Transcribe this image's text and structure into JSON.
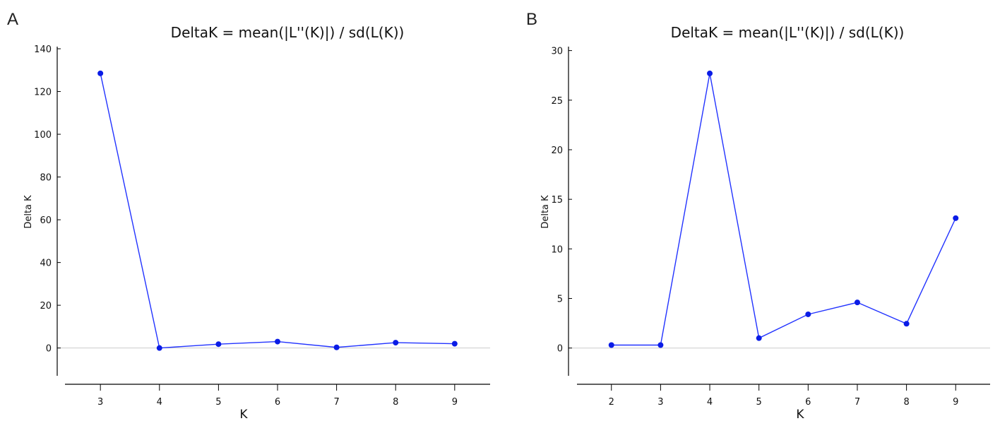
{
  "chart_data": [
    {
      "panel": "A",
      "type": "line",
      "title": "DeltaK = mean(|L''(K)|) / sd(L(K))",
      "xlabel": "K",
      "ylabel": "Delta K",
      "x": [
        3,
        4,
        5,
        6,
        7,
        8,
        9
      ],
      "x_ticks": [
        "3",
        "4",
        "5",
        "6",
        "7",
        "8",
        "9"
      ],
      "xlim": [
        2.4,
        9.6
      ],
      "y_ticks": [
        "0",
        "20",
        "40",
        "60",
        "80",
        "100",
        "120",
        "140"
      ],
      "ylim": [
        -13,
        141
      ],
      "series": [
        {
          "values": [
            128.5,
            0.0,
            1.8,
            3.0,
            0.3,
            2.5,
            2.0
          ]
        }
      ],
      "zero_line": true,
      "grid": false,
      "colors": {
        "line": "#2233ff",
        "marker": "#0a1ce6",
        "zero_line": "#cccccc",
        "axis": "#000000"
      }
    },
    {
      "panel": "B",
      "type": "line",
      "title": "DeltaK = mean(|L''(K)|) / sd(L(K))",
      "xlabel": "K",
      "ylabel": "Delta K",
      "x": [
        2,
        3,
        4,
        5,
        6,
        7,
        8,
        9
      ],
      "x_ticks": [
        "2",
        "3",
        "4",
        "5",
        "6",
        "7",
        "8",
        "9"
      ],
      "xlim": [
        1.3,
        9.7
      ],
      "y_ticks": [
        "0",
        "5",
        "10",
        "15",
        "20",
        "25",
        "30"
      ],
      "ylim": [
        -2.8,
        30.4
      ],
      "series": [
        {
          "values": [
            0.3,
            0.3,
            27.7,
            1.0,
            3.4,
            4.6,
            2.45,
            13.1
          ]
        }
      ],
      "zero_line": true,
      "grid": false,
      "colors": {
        "line": "#2233ff",
        "marker": "#0a1ce6",
        "zero_line": "#cccccc",
        "axis": "#000000"
      }
    }
  ]
}
